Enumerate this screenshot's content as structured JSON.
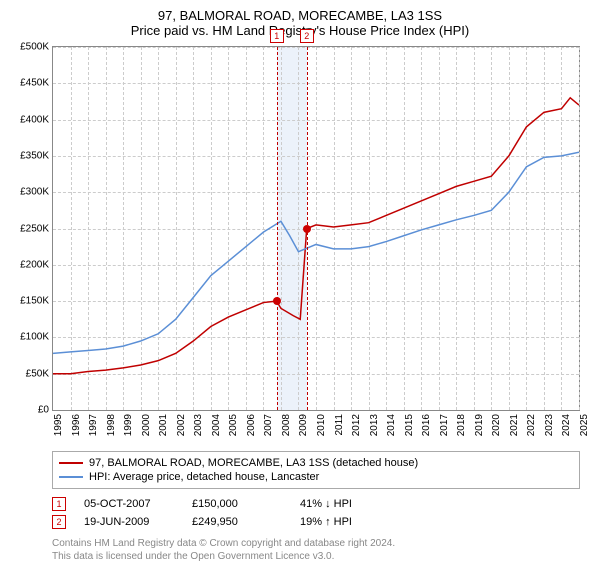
{
  "title": "97, BALMORAL ROAD, MORECAMBE, LA3 1SS",
  "subtitle": "Price paid vs. HM Land Registry's House Price Index (HPI)",
  "chart": {
    "type": "line",
    "ylim": [
      0,
      500000
    ],
    "ytick_step": 50000,
    "ytick_labels": [
      "£0",
      "£50K",
      "£100K",
      "£150K",
      "£200K",
      "£250K",
      "£300K",
      "£350K",
      "£400K",
      "£450K",
      "£500K"
    ],
    "xlim": [
      1995,
      2025
    ],
    "xtick_step": 1,
    "xtick_labels": [
      "1995",
      "1996",
      "1997",
      "1998",
      "1999",
      "2000",
      "2001",
      "2002",
      "2003",
      "2004",
      "2005",
      "2006",
      "2007",
      "2008",
      "2009",
      "2010",
      "2011",
      "2012",
      "2013",
      "2014",
      "2015",
      "2016",
      "2017",
      "2018",
      "2019",
      "2020",
      "2021",
      "2022",
      "2023",
      "2024",
      "2025"
    ],
    "grid_color": "#cccccc",
    "background_color": "#ffffff",
    "axis_color": "#888888",
    "label_fontsize": 10,
    "series": [
      {
        "name": "97, BALMORAL ROAD, MORECAMBE, LA3 1SS (detached house)",
        "color": "#c00000",
        "line_width": 1.5,
        "data": [
          [
            1995,
            50000
          ],
          [
            1996,
            50000
          ],
          [
            1997,
            53000
          ],
          [
            1998,
            55000
          ],
          [
            1999,
            58000
          ],
          [
            2000,
            62000
          ],
          [
            2001,
            68000
          ],
          [
            2002,
            78000
          ],
          [
            2003,
            95000
          ],
          [
            2004,
            115000
          ],
          [
            2005,
            128000
          ],
          [
            2006,
            138000
          ],
          [
            2007,
            148000
          ],
          [
            2007.75,
            150000
          ],
          [
            2008,
            140000
          ],
          [
            2008.7,
            130000
          ],
          [
            2009.1,
            125000
          ],
          [
            2009.47,
            249950
          ],
          [
            2010,
            255000
          ],
          [
            2011,
            252000
          ],
          [
            2012,
            255000
          ],
          [
            2013,
            258000
          ],
          [
            2014,
            268000
          ],
          [
            2015,
            278000
          ],
          [
            2016,
            288000
          ],
          [
            2017,
            298000
          ],
          [
            2018,
            308000
          ],
          [
            2019,
            315000
          ],
          [
            2020,
            322000
          ],
          [
            2021,
            350000
          ],
          [
            2022,
            390000
          ],
          [
            2023,
            410000
          ],
          [
            2024,
            415000
          ],
          [
            2024.5,
            430000
          ],
          [
            2025,
            420000
          ]
        ]
      },
      {
        "name": "HPI: Average price, detached house, Lancaster",
        "color": "#5b8fd6",
        "line_width": 1.5,
        "data": [
          [
            1995,
            78000
          ],
          [
            1996,
            80000
          ],
          [
            1997,
            82000
          ],
          [
            1998,
            84000
          ],
          [
            1999,
            88000
          ],
          [
            2000,
            95000
          ],
          [
            2001,
            105000
          ],
          [
            2002,
            125000
          ],
          [
            2003,
            155000
          ],
          [
            2004,
            185000
          ],
          [
            2005,
            205000
          ],
          [
            2006,
            225000
          ],
          [
            2007,
            245000
          ],
          [
            2008,
            260000
          ],
          [
            2008.5,
            240000
          ],
          [
            2009,
            218000
          ],
          [
            2010,
            228000
          ],
          [
            2011,
            222000
          ],
          [
            2012,
            222000
          ],
          [
            2013,
            225000
          ],
          [
            2014,
            232000
          ],
          [
            2015,
            240000
          ],
          [
            2016,
            248000
          ],
          [
            2017,
            255000
          ],
          [
            2018,
            262000
          ],
          [
            2019,
            268000
          ],
          [
            2020,
            275000
          ],
          [
            2021,
            300000
          ],
          [
            2022,
            335000
          ],
          [
            2023,
            348000
          ],
          [
            2024,
            350000
          ],
          [
            2025,
            355000
          ]
        ]
      }
    ],
    "sale_markers": [
      {
        "badge": "1",
        "x": 2007.76,
        "price": 150000
      },
      {
        "badge": "2",
        "x": 2009.47,
        "price": 249950
      }
    ],
    "marker_color": "#c00000",
    "marker_band_color": "#ecf2fa"
  },
  "legend": {
    "rows": [
      {
        "color": "#c00000",
        "label": "97, BALMORAL ROAD, MORECAMBE, LA3 1SS (detached house)"
      },
      {
        "color": "#5b8fd6",
        "label": "HPI: Average price, detached house, Lancaster"
      }
    ]
  },
  "sales_table": {
    "rows": [
      {
        "badge": "1",
        "date": "05-OCT-2007",
        "price": "£150,000",
        "delta": "41% ↓ HPI"
      },
      {
        "badge": "2",
        "date": "19-JUN-2009",
        "price": "£249,950",
        "delta": "19% ↑ HPI"
      }
    ]
  },
  "footer": {
    "line1": "Contains HM Land Registry data © Crown copyright and database right 2024.",
    "line2": "This data is licensed under the Open Government Licence v3.0."
  }
}
